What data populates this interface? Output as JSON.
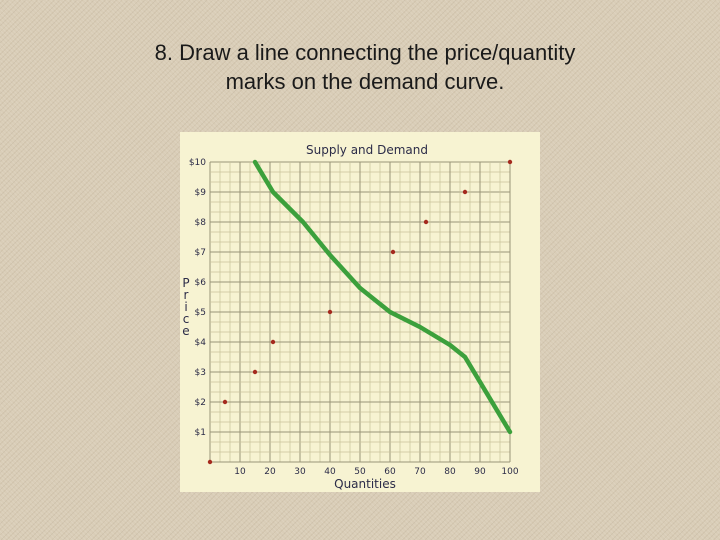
{
  "slide": {
    "title": "8. Draw a line connecting the price/quantity marks on the demand curve."
  },
  "colors": {
    "background": "#d9cdb7",
    "chart_background": "#f7f3d2",
    "grid_minor": "#c8c29a",
    "grid_major": "#9a9478",
    "demand_line": "#3ca03c",
    "marks": "#a52a1e",
    "text": "#2c2c48"
  },
  "chart_data": {
    "type": "scatter",
    "title": "Supply and Demand",
    "xlabel": "Quantities",
    "ylabel": "Price",
    "xlim": [
      0,
      100
    ],
    "ylim": [
      0,
      10
    ],
    "x_ticks": [
      10,
      20,
      30,
      40,
      50,
      60,
      70,
      80,
      90,
      100
    ],
    "x_tick_labels": [
      "10",
      "20",
      "30",
      "40",
      "50",
      "60",
      "70",
      "80",
      "90",
      "100"
    ],
    "y_ticks": [
      1,
      2,
      3,
      4,
      5,
      6,
      7,
      8,
      9,
      10
    ],
    "y_tick_labels": [
      "$1",
      "$2",
      "$3",
      "$4",
      "$5",
      "$6",
      "$7",
      "$8",
      "$9",
      "$10"
    ],
    "grid": true,
    "marks": [
      {
        "x": 0,
        "y": 0
      },
      {
        "x": 5,
        "y": 2
      },
      {
        "x": 15,
        "y": 3
      },
      {
        "x": 21,
        "y": 4
      },
      {
        "x": 40,
        "y": 5
      },
      {
        "x": 61,
        "y": 7
      },
      {
        "x": 72,
        "y": 8
      },
      {
        "x": 85,
        "y": 9
      },
      {
        "x": 100,
        "y": 10
      }
    ],
    "demand_curve": {
      "x": [
        15,
        21,
        31,
        40,
        50,
        60,
        70,
        80,
        85,
        100
      ],
      "y": [
        10,
        9,
        8,
        6.9,
        5.8,
        5,
        4.5,
        3.9,
        3.5,
        1
      ]
    }
  }
}
